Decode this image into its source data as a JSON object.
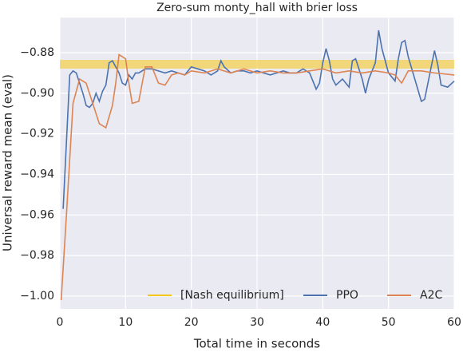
{
  "chart_data": {
    "type": "line",
    "title": "Zero-sum monty_hall with brier loss",
    "x_label": "Total time in seconds",
    "y_label": "Universal reward mean (eval)",
    "xlim": [
      0,
      60
    ],
    "ylim": [
      -1.0063,
      -0.8627
    ],
    "xticks": [
      0,
      10,
      20,
      30,
      40,
      50,
      60
    ],
    "yticks": [
      {
        "value": -1.0,
        "label": "−1.00"
      },
      {
        "value": -0.98,
        "label": "−0.98"
      },
      {
        "value": -0.96,
        "label": "−0.96"
      },
      {
        "value": -0.94,
        "label": "−0.94"
      },
      {
        "value": -0.92,
        "label": "−0.92"
      },
      {
        "value": -0.9,
        "label": "−0.90"
      },
      {
        "value": -0.88,
        "label": "−0.88"
      }
    ],
    "grid": true,
    "legend": "lower right",
    "series": [
      {
        "name": "[Nash equilibrium]",
        "color": "#f5c518",
        "x": [
          0,
          60
        ],
        "values": [
          -0.8857,
          -0.8857
        ]
      },
      {
        "name": "PPO",
        "color": "#4c72b0",
        "x": [
          0.5,
          1.5,
          2,
          2.5,
          3,
          3.5,
          4,
          4.5,
          5,
          5.5,
          6,
          6.5,
          7,
          7.5,
          8,
          8.5,
          9,
          9.5,
          10,
          10.5,
          11,
          11.5,
          12,
          13,
          14,
          15,
          16,
          17,
          18,
          19,
          20,
          21,
          22,
          23,
          24,
          24.5,
          25,
          26,
          27,
          28,
          29,
          30,
          31,
          32,
          33,
          34,
          35,
          36,
          37,
          38,
          39,
          39.5,
          40,
          40.5,
          41,
          41.5,
          42,
          43,
          44,
          44.5,
          45,
          46,
          46.5,
          47,
          48,
          48.5,
          49,
          50,
          51,
          51.5,
          52,
          52.5,
          53,
          54,
          55,
          55.5,
          56,
          57,
          57.5,
          58,
          59,
          60
        ],
        "values": [
          -0.957,
          -0.891,
          -0.889,
          -0.89,
          -0.895,
          -0.9,
          -0.906,
          -0.907,
          -0.905,
          -0.9,
          -0.904,
          -0.899,
          -0.896,
          -0.885,
          -0.884,
          -0.887,
          -0.89,
          -0.895,
          -0.896,
          -0.891,
          -0.893,
          -0.89,
          -0.89,
          -0.888,
          -0.888,
          -0.889,
          -0.89,
          -0.889,
          -0.89,
          -0.891,
          -0.887,
          -0.888,
          -0.889,
          -0.891,
          -0.889,
          -0.884,
          -0.887,
          -0.89,
          -0.889,
          -0.889,
          -0.89,
          -0.889,
          -0.89,
          -0.891,
          -0.89,
          -0.889,
          -0.89,
          -0.89,
          -0.888,
          -0.89,
          -0.898,
          -0.895,
          -0.885,
          -0.878,
          -0.884,
          -0.893,
          -0.896,
          -0.893,
          -0.897,
          -0.884,
          -0.883,
          -0.893,
          -0.9,
          -0.893,
          -0.885,
          -0.869,
          -0.878,
          -0.89,
          -0.894,
          -0.883,
          -0.875,
          -0.874,
          -0.882,
          -0.893,
          -0.904,
          -0.903,
          -0.895,
          -0.879,
          -0.886,
          -0.896,
          -0.897,
          -0.894
        ]
      },
      {
        "name": "A2C",
        "color": "#dd8452",
        "x": [
          0.2,
          1,
          2,
          3,
          4,
          5,
          6,
          7,
          8,
          8.5,
          9,
          10,
          10.5,
          11,
          12,
          13,
          14,
          15,
          16,
          17,
          18,
          19,
          20,
          22,
          24,
          26,
          28,
          30,
          32,
          34,
          36,
          38,
          40,
          42,
          44,
          46,
          48,
          50,
          51,
          52,
          53,
          55,
          57,
          60
        ],
        "values": [
          -1.002,
          -0.96,
          -0.905,
          -0.893,
          -0.895,
          -0.905,
          -0.915,
          -0.917,
          -0.906,
          -0.895,
          -0.881,
          -0.883,
          -0.895,
          -0.905,
          -0.904,
          -0.887,
          -0.887,
          -0.895,
          -0.896,
          -0.891,
          -0.89,
          -0.891,
          -0.889,
          -0.89,
          -0.888,
          -0.89,
          -0.888,
          -0.89,
          -0.889,
          -0.89,
          -0.89,
          -0.889,
          -0.888,
          -0.89,
          -0.889,
          -0.89,
          -0.889,
          -0.89,
          -0.891,
          -0.895,
          -0.889,
          -0.889,
          -0.89,
          -0.891
        ]
      }
    ]
  }
}
